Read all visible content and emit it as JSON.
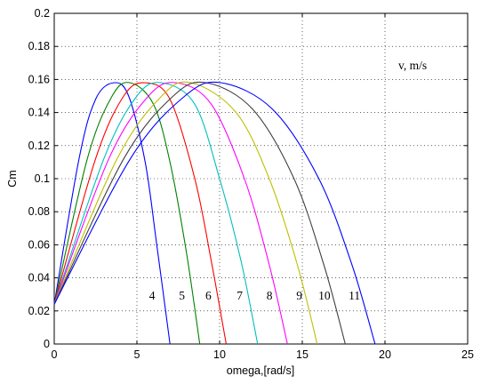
{
  "chart_data": {
    "type": "line",
    "title": "",
    "xlabel": "omega,[rad/s]",
    "ylabel": "Cm",
    "xlim": [
      0,
      25
    ],
    "ylim": [
      0,
      0.2
    ],
    "x_ticks": [
      "0",
      "5",
      "10",
      "15",
      "20",
      "25"
    ],
    "y_ticks": [
      "0",
      "0.02",
      "0.04",
      "0.06",
      "0.08",
      "0.1",
      "0.12",
      "0.14",
      "0.16",
      "0.18",
      "0.2"
    ],
    "grid": true,
    "legend_title": "v, m/s",
    "series": [
      {
        "name": "4",
        "color": "#0000ff",
        "x": [
          0,
          1.5,
          2.5,
          3.6,
          4.5,
          5.5,
          6.2,
          7.0
        ],
        "y": [
          0.024,
          0.112,
          0.148,
          0.158,
          0.15,
          0.11,
          0.06,
          0
        ]
      },
      {
        "name": "5",
        "color": "#008000",
        "x": [
          0,
          2,
          3.5,
          4.6,
          6,
          7,
          8,
          8.8
        ],
        "y": [
          0.024,
          0.112,
          0.15,
          0.158,
          0.145,
          0.11,
          0.055,
          0
        ]
      },
      {
        "name": "6",
        "color": "#ff0000",
        "x": [
          0,
          2.5,
          4.2,
          5.5,
          7,
          8.5,
          9.5,
          10.4
        ],
        "y": [
          0.024,
          0.112,
          0.15,
          0.158,
          0.148,
          0.1,
          0.05,
          0
        ]
      },
      {
        "name": "7",
        "color": "#00bfbf",
        "x": [
          0,
          3,
          5,
          6.5,
          8.5,
          10,
          11.3,
          12.3
        ],
        "y": [
          0.024,
          0.112,
          0.15,
          0.158,
          0.145,
          0.1,
          0.05,
          0
        ]
      },
      {
        "name": "8",
        "color": "#ff00ff",
        "x": [
          0,
          3.3,
          5.7,
          7.4,
          9.5,
          11.5,
          13,
          14.1
        ],
        "y": [
          0.024,
          0.112,
          0.15,
          0.158,
          0.145,
          0.1,
          0.048,
          0
        ]
      },
      {
        "name": "9",
        "color": "#bfbf00",
        "x": [
          0,
          3.8,
          6.5,
          8.3,
          11,
          13,
          14.7,
          15.9
        ],
        "y": [
          0.024,
          0.112,
          0.15,
          0.158,
          0.14,
          0.1,
          0.048,
          0
        ]
      },
      {
        "name": "10",
        "color": "#404040",
        "x": [
          0,
          4.2,
          7.2,
          9.2,
          12,
          14.5,
          16.3,
          17.6
        ],
        "y": [
          0.024,
          0.112,
          0.15,
          0.158,
          0.142,
          0.1,
          0.048,
          0
        ]
      },
      {
        "name": "11",
        "color": "#0000ff",
        "x": [
          0,
          4.6,
          7.9,
          10.1,
          13.2,
          16,
          18,
          19.4
        ],
        "y": [
          0.024,
          0.112,
          0.15,
          0.158,
          0.142,
          0.1,
          0.048,
          0
        ]
      }
    ]
  }
}
